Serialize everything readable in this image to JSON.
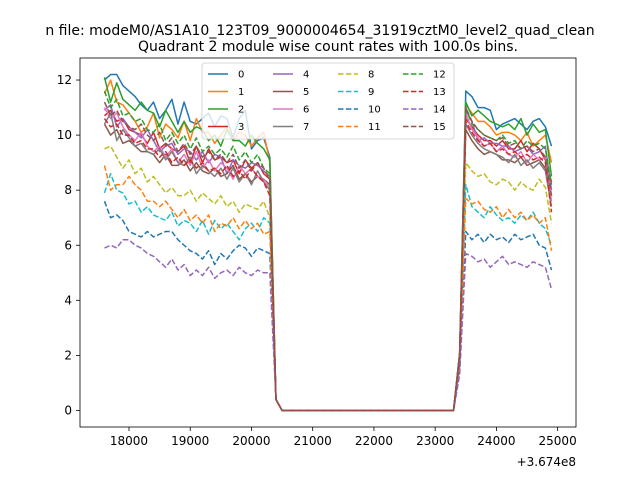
{
  "chart_data": {
    "type": "line",
    "suptitle": "n file: modeM0/AS1A10_123T09_9000004654_31919cztM0_level2_quad_clean",
    "title": "Quadrant 2 module wise count rates with 100.0s bins.",
    "xlabel": "",
    "ylabel": "",
    "x_offset_label": "+3.674e8",
    "xlim": [
      17200,
      25300
    ],
    "ylim": [
      -0.6,
      12.8
    ],
    "xticks": [
      18000,
      19000,
      20000,
      21000,
      22000,
      23000,
      24000,
      25000
    ],
    "yticks": [
      0,
      2,
      4,
      6,
      8,
      10,
      12
    ],
    "grid": false,
    "legend": {
      "position": "top-center",
      "columns": 4
    },
    "shape": {
      "x_start": 17600,
      "step": 100,
      "seg1_end": 20300,
      "drop_x": [
        20400,
        20500
      ],
      "zero_end": 23300,
      "rise_x": 23400,
      "seg2_start": 23500,
      "x_end": 24900
    },
    "series": [
      {
        "name": "0",
        "style": "solid",
        "color": "#1f77b4",
        "values1": [
          12.0,
          12.2,
          12.2,
          11.8,
          11.6,
          11.4,
          11.1,
          10.9,
          11.2,
          10.6,
          10.9,
          11.3,
          10.4,
          11.2,
          10.5,
          10.4,
          10.6,
          10.8,
          10.3,
          10.7,
          10.6,
          9.9,
          10.6,
          10.9,
          9.5,
          9.8,
          9.9,
          9.2
        ],
        "drop": [
          0.4,
          0.0
        ],
        "rise": 2.1,
        "values2": [
          11.6,
          11.4,
          11.0,
          11.0,
          10.9,
          10.2,
          10.4,
          10.5,
          10.6,
          10.4,
          10.2,
          10.5,
          10.6,
          10.3,
          9.6
        ]
      },
      {
        "name": "1",
        "style": "solid",
        "color": "#ff7f0e",
        "values1": [
          11.5,
          12.0,
          11.2,
          11.1,
          10.8,
          10.5,
          10.1,
          10.3,
          10.8,
          9.9,
          10.4,
          10.2,
          9.9,
          10.5,
          9.8,
          10.6,
          10.1,
          10.1,
          9.7,
          10.0,
          10.3,
          9.8,
          10.1,
          10.0,
          9.6,
          9.9,
          10.1,
          9.0
        ],
        "drop": [
          0.4,
          0.0
        ],
        "rise": 2.0,
        "values2": [
          11.1,
          10.8,
          10.5,
          10.5,
          10.3,
          10.0,
          10.1,
          10.1,
          10.0,
          9.8,
          10.1,
          9.6,
          9.8,
          10.0,
          9.0
        ]
      },
      {
        "name": "2",
        "style": "solid",
        "color": "#2ca02c",
        "values1": [
          12.1,
          11.2,
          11.9,
          11.3,
          11.1,
          10.9,
          11.2,
          10.9,
          10.8,
          10.3,
          10.9,
          10.5,
          10.1,
          10.5,
          10.1,
          10.3,
          10.2,
          9.8,
          10.0,
          9.6,
          10.2,
          9.8,
          9.8,
          9.6,
          10.0,
          9.7,
          9.5,
          9.1
        ],
        "drop": [
          0.4,
          0.0
        ],
        "rise": 2.1,
        "values2": [
          11.2,
          10.7,
          10.9,
          10.7,
          10.5,
          10.4,
          10.3,
          10.4,
          10.2,
          10.6,
          10.0,
          10.4,
          10.1,
          10.2,
          8.5
        ]
      },
      {
        "name": "3",
        "style": "solid",
        "color": "#d62728",
        "values1": [
          10.7,
          10.9,
          10.5,
          10.6,
          10.2,
          10.1,
          10.0,
          9.7,
          10.1,
          9.5,
          9.7,
          9.5,
          9.4,
          9.6,
          9.0,
          9.6,
          9.0,
          9.5,
          9.1,
          9.2,
          9.0,
          9.1,
          8.6,
          9.1,
          8.8,
          9.0,
          8.6,
          8.4
        ],
        "drop": [
          0.4,
          0.0
        ],
        "rise": 2.0,
        "values2": [
          10.6,
          10.3,
          10.0,
          9.8,
          9.8,
          9.6,
          9.8,
          9.5,
          9.5,
          9.8,
          9.4,
          9.7,
          9.5,
          9.1,
          8.3
        ]
      },
      {
        "name": "4",
        "style": "solid",
        "color": "#9467bd",
        "values1": [
          10.9,
          11.1,
          10.3,
          10.6,
          10.3,
          10.1,
          9.9,
          10.2,
          9.8,
          9.4,
          9.6,
          9.7,
          9.3,
          9.5,
          9.4,
          9.1,
          9.4,
          9.0,
          9.3,
          9.2,
          8.6,
          9.1,
          8.9,
          8.8,
          9.0,
          8.9,
          8.7,
          8.5
        ],
        "drop": [
          0.4,
          0.0
        ],
        "rise": 2.0,
        "values2": [
          10.9,
          10.5,
          9.8,
          9.9,
          9.7,
          9.7,
          9.6,
          9.6,
          9.4,
          9.5,
          9.6,
          9.3,
          9.4,
          9.6,
          8.0
        ]
      },
      {
        "name": "5",
        "style": "solid",
        "color": "#8c564b",
        "values1": [
          10.4,
          10.0,
          10.2,
          9.7,
          9.8,
          9.6,
          9.4,
          9.4,
          9.3,
          9.0,
          9.3,
          8.9,
          8.9,
          9.1,
          8.7,
          9.0,
          8.7,
          8.6,
          8.8,
          8.5,
          8.6,
          8.9,
          8.4,
          8.6,
          8.3,
          8.5,
          8.4,
          8.2
        ],
        "drop": [
          0.4,
          0.0
        ],
        "rise": 1.9,
        "values2": [
          10.2,
          9.8,
          9.5,
          9.3,
          9.4,
          9.3,
          9.1,
          9.1,
          9.0,
          9.2,
          8.9,
          9.0,
          9.1,
          8.8,
          7.8
        ]
      },
      {
        "name": "6",
        "style": "solid",
        "color": "#e377c2",
        "values1": [
          11.0,
          10.6,
          10.8,
          10.3,
          10.0,
          9.8,
          10.1,
          9.6,
          9.4,
          9.6,
          9.2,
          9.5,
          9.0,
          9.3,
          8.9,
          9.4,
          8.8,
          9.1,
          8.7,
          9.0,
          8.8,
          8.4,
          8.9,
          8.6,
          8.8,
          8.5,
          8.4,
          8.1
        ],
        "drop": [
          0.4,
          0.0
        ],
        "rise": 1.9,
        "values2": [
          10.8,
          10.2,
          9.9,
          9.6,
          9.7,
          9.4,
          9.6,
          9.3,
          9.2,
          9.4,
          9.0,
          9.3,
          9.1,
          9.2,
          7.6
        ]
      },
      {
        "name": "7",
        "style": "solid",
        "color": "#7f7f7f",
        "values1": [
          10.4,
          10.8,
          9.8,
          10.2,
          9.9,
          9.6,
          9.7,
          9.4,
          9.3,
          9.5,
          9.1,
          9.4,
          9.0,
          8.9,
          9.2,
          8.6,
          8.9,
          8.7,
          8.5,
          8.8,
          8.4,
          8.8,
          8.3,
          8.6,
          8.2,
          8.7,
          8.3,
          8.0
        ],
        "drop": [
          0.4,
          0.0
        ],
        "rise": 1.9,
        "values2": [
          10.4,
          10.0,
          9.7,
          9.5,
          9.4,
          9.3,
          9.2,
          9.0,
          9.3,
          8.9,
          9.1,
          8.8,
          9.0,
          8.7,
          7.4
        ]
      },
      {
        "name": "8",
        "style": "dashed",
        "color": "#bcbd22",
        "values1": [
          9.5,
          9.6,
          9.2,
          8.8,
          9.1,
          8.6,
          8.8,
          8.3,
          8.5,
          8.2,
          7.9,
          8.1,
          7.8,
          7.8,
          8.0,
          7.6,
          7.9,
          7.7,
          7.5,
          7.8,
          7.4,
          7.6,
          7.2,
          7.5,
          7.4,
          7.3,
          7.6,
          7.0
        ],
        "drop": [
          0.4,
          0.0
        ],
        "rise": 1.8,
        "values2": [
          9.0,
          8.7,
          8.5,
          8.6,
          8.3,
          8.2,
          8.4,
          8.3,
          8.0,
          8.3,
          8.1,
          8.0,
          8.4,
          8.1,
          6.8
        ]
      },
      {
        "name": "9",
        "style": "dashed",
        "color": "#17becf",
        "values1": [
          7.9,
          8.6,
          8.0,
          7.9,
          7.5,
          7.6,
          7.2,
          7.4,
          7.1,
          7.0,
          6.9,
          7.2,
          6.7,
          6.9,
          6.8,
          6.5,
          6.9,
          6.4,
          6.9,
          6.6,
          6.8,
          6.5,
          6.2,
          6.6,
          6.8,
          6.5,
          7.0,
          6.8
        ],
        "drop": [
          0.4,
          0.0
        ],
        "rise": 1.6,
        "values2": [
          8.2,
          7.4,
          7.2,
          7.0,
          7.4,
          7.1,
          6.9,
          7.0,
          6.8,
          7.1,
          6.9,
          7.2,
          6.8,
          6.6,
          6.0
        ]
      },
      {
        "name": "10",
        "style": "dashed",
        "color": "#1f77b4",
        "values1": [
          7.6,
          7.0,
          7.1,
          6.9,
          6.5,
          6.4,
          6.3,
          6.5,
          6.3,
          6.4,
          6.5,
          6.5,
          6.2,
          6.0,
          5.8,
          5.7,
          5.5,
          5.8,
          5.3,
          5.7,
          5.5,
          5.8,
          6.0,
          5.9,
          5.6,
          5.9,
          5.8,
          5.7
        ],
        "drop": [
          0.4,
          0.0
        ],
        "rise": 1.4,
        "values2": [
          6.5,
          6.2,
          6.4,
          6.1,
          6.4,
          6.2,
          6.3,
          6.1,
          6.4,
          6.2,
          6.3,
          6.4,
          6.0,
          5.9,
          5.1
        ]
      },
      {
        "name": "11",
        "style": "dashed",
        "color": "#ff7f0e",
        "values1": [
          8.9,
          8.0,
          8.2,
          8.2,
          8.5,
          8.2,
          8.0,
          7.6,
          7.6,
          7.4,
          7.6,
          7.3,
          7.0,
          7.3,
          6.9,
          7.1,
          6.8,
          7.1,
          6.5,
          6.8,
          6.7,
          7.0,
          6.6,
          6.9,
          6.6,
          6.8,
          6.4,
          6.5
        ],
        "drop": [
          0.4,
          0.0
        ],
        "rise": 1.7,
        "values2": [
          7.7,
          7.5,
          7.6,
          7.3,
          7.2,
          7.4,
          7.0,
          7.3,
          7.0,
          7.2,
          6.9,
          7.1,
          6.8,
          7.0,
          5.8
        ]
      },
      {
        "name": "12",
        "style": "dashed",
        "color": "#2ca02c",
        "values1": [
          11.6,
          11.0,
          11.3,
          10.7,
          10.8,
          10.5,
          10.6,
          10.2,
          10.1,
          10.4,
          9.8,
          10.1,
          9.7,
          10.0,
          9.5,
          9.9,
          9.4,
          9.6,
          9.3,
          9.5,
          9.2,
          9.6,
          9.1,
          9.4,
          9.0,
          9.3,
          8.8,
          8.6
        ],
        "drop": [
          0.4,
          0.0
        ],
        "rise": 2.0,
        "values2": [
          11.0,
          10.4,
          10.2,
          10.0,
          9.9,
          9.8,
          10.0,
          9.7,
          9.8,
          9.5,
          9.8,
          9.6,
          9.7,
          9.5,
          8.2
        ]
      },
      {
        "name": "13",
        "style": "dashed",
        "color": "#d62728",
        "values1": [
          10.6,
          10.3,
          10.4,
          10.0,
          10.0,
          9.7,
          9.8,
          9.5,
          9.5,
          9.2,
          9.4,
          9.0,
          9.2,
          8.9,
          9.1,
          8.8,
          9.0,
          8.7,
          8.8,
          8.6,
          8.9,
          8.5,
          8.7,
          8.4,
          8.8,
          8.5,
          8.3,
          7.8
        ],
        "drop": [
          0.4,
          0.0
        ],
        "rise": 1.9,
        "values2": [
          10.5,
          10.1,
          9.8,
          9.6,
          9.7,
          9.4,
          9.5,
          9.3,
          9.4,
          9.2,
          9.3,
          9.1,
          9.2,
          9.0,
          7.2
        ]
      },
      {
        "name": "14",
        "style": "dashed",
        "color": "#9467bd",
        "values1": [
          5.9,
          6.0,
          5.9,
          6.2,
          6.2,
          6.0,
          5.9,
          5.7,
          5.6,
          5.4,
          5.2,
          5.5,
          5.1,
          5.3,
          4.9,
          5.1,
          4.9,
          5.2,
          4.8,
          5.0,
          5.1,
          4.9,
          5.2,
          5.0,
          4.9,
          5.1,
          5.0,
          5.0
        ],
        "drop": [
          0.4,
          0.0
        ],
        "rise": 1.3,
        "values2": [
          5.7,
          5.6,
          5.4,
          5.5,
          5.2,
          5.4,
          5.6,
          5.3,
          5.4,
          5.3,
          5.2,
          5.4,
          5.3,
          5.2,
          4.4
        ]
      },
      {
        "name": "15",
        "style": "dashed",
        "color": "#8c564b",
        "values1": [
          11.2,
          10.7,
          10.9,
          10.5,
          10.3,
          10.2,
          10.4,
          10.0,
          9.8,
          10.1,
          9.6,
          9.9,
          9.4,
          9.7,
          9.3,
          9.6,
          9.2,
          9.4,
          9.1,
          9.3,
          9.0,
          9.3,
          8.8,
          9.1,
          8.7,
          9.0,
          8.8,
          8.4
        ],
        "drop": [
          0.4,
          0.0
        ],
        "rise": 2.0,
        "values2": [
          11.0,
          10.5,
          10.2,
          10.0,
          9.9,
          9.8,
          9.9,
          9.6,
          9.7,
          9.5,
          9.6,
          9.4,
          9.5,
          9.2,
          7.8
        ]
      }
    ]
  }
}
